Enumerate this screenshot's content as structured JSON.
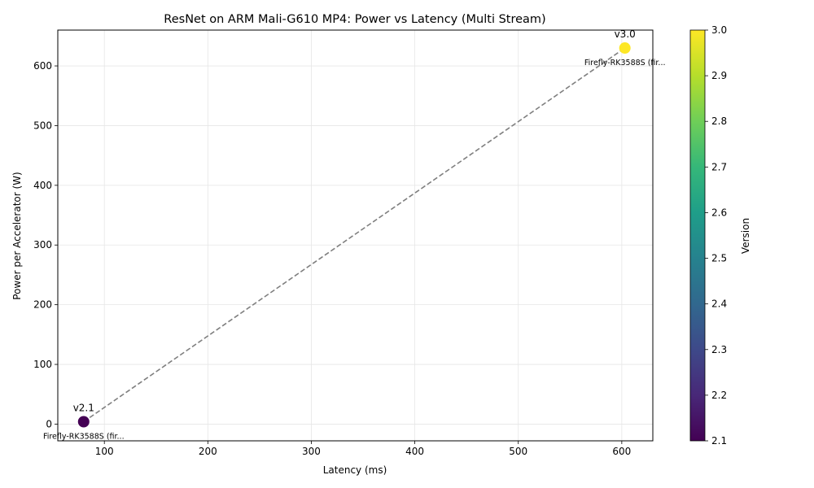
{
  "chart_data": {
    "type": "scatter",
    "title": "ResNet on ARM Mali-G610 MP4: Power vs Latency (Multi Stream)",
    "xlabel": "Latency (ms)",
    "ylabel": "Power per Accelerator (W)",
    "xlim": [
      55,
      630
    ],
    "ylim": [
      -28,
      660
    ],
    "xticks": [
      100,
      200,
      300,
      400,
      500,
      600
    ],
    "yticks": [
      0,
      100,
      200,
      300,
      400,
      500,
      600
    ],
    "grid": true,
    "connector_line": "dashed",
    "points": [
      {
        "x": 80,
        "y": 4,
        "version": 2.1,
        "label": "v2.1",
        "system": "Firefly-RK3588S (fir...",
        "color": "#440154"
      },
      {
        "x": 603,
        "y": 630,
        "version": 3.0,
        "label": "v3.0",
        "system": "Firefly-RK3588S (fir...",
        "color": "#fde725"
      }
    ],
    "colorbar": {
      "label": "Version",
      "colormap": "viridis",
      "range": [
        2.1,
        3.0
      ],
      "ticks": [
        "2.1",
        "2.2",
        "2.3",
        "2.4",
        "2.5",
        "2.6",
        "2.7",
        "2.8",
        "2.9",
        "3.0"
      ]
    }
  }
}
